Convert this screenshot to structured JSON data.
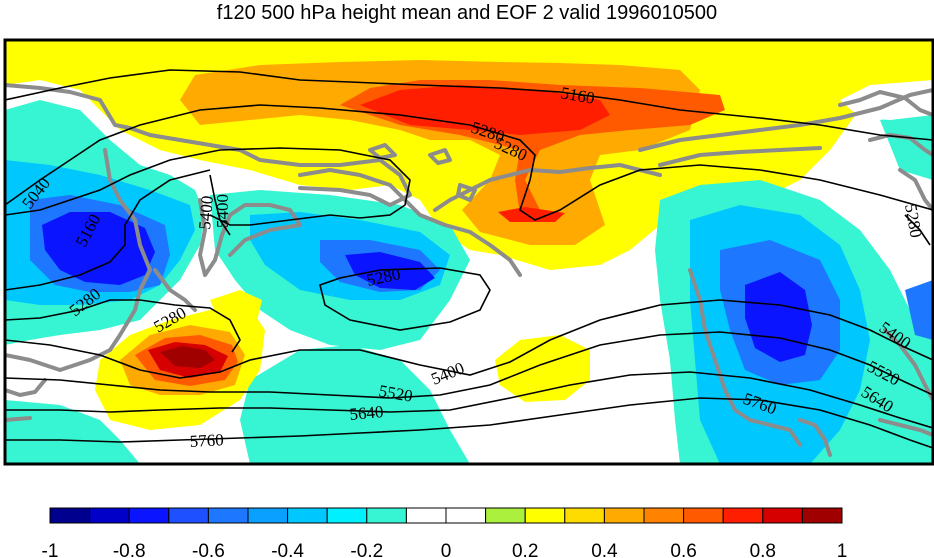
{
  "title": "f120 500 hPa height mean and EOF 2 valid 1996010500",
  "colorbar": {
    "colors": [
      "#00008e",
      "#0000c8",
      "#0a14ff",
      "#1e50ff",
      "#1e78ff",
      "#0aa0ff",
      "#00c8ff",
      "#00f0ff",
      "#37f5d2",
      "#ffffff",
      "#ffffff",
      "#aaf03c",
      "#ffff00",
      "#ffdc00",
      "#ffaa00",
      "#ff8200",
      "#ff5a00",
      "#ff1e00",
      "#d70000",
      "#a00000"
    ],
    "tick_labels": [
      "-1",
      "-0.8",
      "-0.6",
      "-0.4",
      "-0.2",
      "0",
      "0.2",
      "0.4",
      "0.6",
      "0.8",
      "1"
    ]
  },
  "contour_labels": [
    "5040",
    "5160",
    "5160",
    "5280",
    "5280",
    "5280",
    "5280",
    "5400",
    "5400",
    "5520",
    "5520",
    "5640",
    "5640",
    "5760",
    "5760",
    "5400",
    "5280",
    "5280",
    "5400"
  ]
}
